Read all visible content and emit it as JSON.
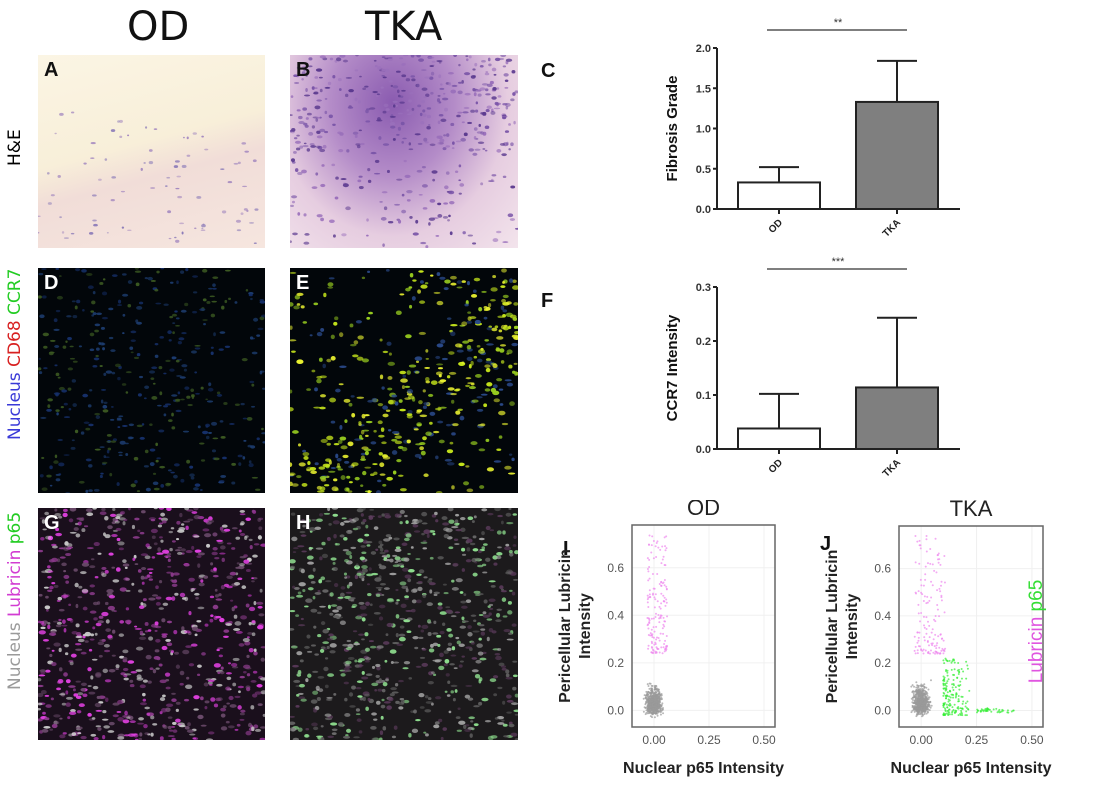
{
  "columns": {
    "od": "OD",
    "tka": "TKA"
  },
  "rows": {
    "he": "H&E",
    "if1": [
      {
        "text": "Nucleus",
        "color": "#3a3ad8"
      },
      {
        "text": " CD68",
        "color": "#d82020"
      },
      {
        "text": " CCR7",
        "color": "#22cc22"
      }
    ],
    "if2": [
      {
        "text": "Nucleus",
        "color": "#9a9a9a"
      },
      {
        "text": " Lubricin",
        "color": "#d23cd2"
      },
      {
        "text": " p65",
        "color": "#22cc22"
      }
    ]
  },
  "panels": {
    "A": "A",
    "B": "B",
    "C": "C",
    "D": "D",
    "E": "E",
    "F": "F",
    "G": "G",
    "H": "H",
    "I": "I",
    "J": "J"
  },
  "chart_data": [
    {
      "type": "bar",
      "panel": "C",
      "categories": [
        "OD",
        "TKA"
      ],
      "values": [
        0.33,
        1.33
      ],
      "errors": [
        0.19,
        0.51
      ],
      "ylabel": "Fibrosis Grade",
      "ylim": [
        0,
        2.0
      ],
      "yticks": [
        "0.0",
        "0.5",
        "1.0",
        "1.5",
        "2.0"
      ],
      "significance": "**",
      "fills": [
        "#ffffff",
        "#7f7f7f"
      ]
    },
    {
      "type": "bar",
      "panel": "F",
      "categories": [
        "OD",
        "TKA"
      ],
      "values": [
        0.038,
        0.114
      ],
      "errors": [
        0.064,
        0.129
      ],
      "ylabel": "CCR7 Intensity",
      "ylim": [
        0,
        0.3
      ],
      "yticks": [
        "0.0",
        "0.1",
        "0.2",
        "0.3"
      ],
      "significance": "***",
      "fills": [
        "#ffffff",
        "#7f7f7f"
      ]
    },
    {
      "type": "scatter",
      "panel": "I",
      "title": "OD",
      "xlabel": "Nuclear p65 Intensity",
      "ylabel": [
        "Pericellular Lubricin",
        "Intensity"
      ],
      "xticks": [
        "0.00",
        "0.25",
        "0.50"
      ],
      "yticks": [
        "0.0",
        "0.2",
        "0.4",
        "0.6"
      ],
      "xlim": [
        -0.1,
        0.55
      ],
      "ylim": [
        -0.07,
        0.78
      ]
    },
    {
      "type": "scatter",
      "panel": "J",
      "title": "TKA",
      "xlabel": "Nuclear p65 Intensity",
      "ylabel": [
        "Pericellular Lubricin",
        "Intensity"
      ],
      "xticks": [
        "0.00",
        "0.25",
        "0.50"
      ],
      "yticks": [
        "0.0",
        "0.2",
        "0.4",
        "0.6"
      ],
      "xlim": [
        -0.1,
        0.55
      ],
      "ylim": [
        -0.07,
        0.78
      ],
      "legend": [
        {
          "text": "Lubricin",
          "color": "#e055e0"
        },
        {
          "text": " p65",
          "color": "#33dd33"
        }
      ]
    }
  ],
  "colors": {
    "grey": "#9a9a9a",
    "magenta": "#ee88ee",
    "green": "#33ee33"
  }
}
